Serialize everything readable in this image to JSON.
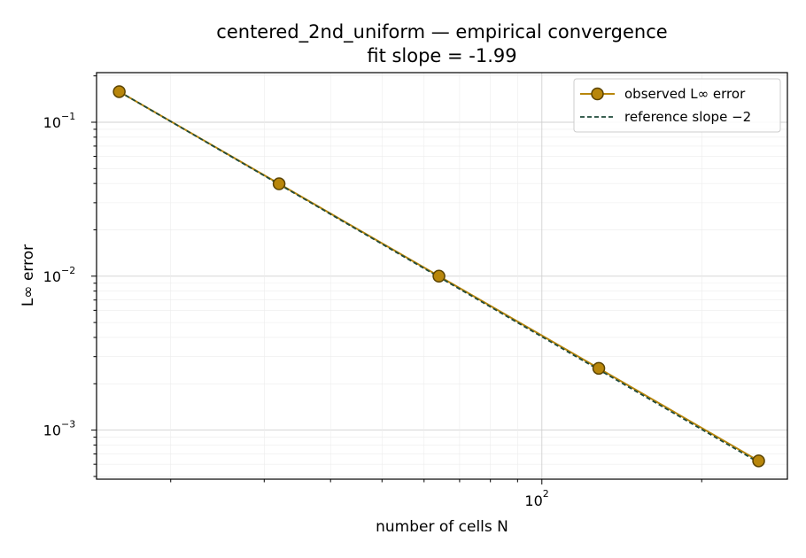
{
  "chart_data": {
    "type": "line",
    "title": "centered_2nd_uniform — empirical convergence",
    "subtitle": "fit slope = -1.99",
    "xlabel": "number of cells N",
    "ylabel": "L∞ error",
    "xscale": "log",
    "yscale": "log",
    "xlim": [
      14.5,
      290
    ],
    "ylim": [
      0.00048,
      0.21
    ],
    "x_ticks": [
      {
        "value": 100,
        "base": "10",
        "exp": "2"
      }
    ],
    "y_ticks": [
      {
        "value": 0.001,
        "base": "10",
        "exp": "−3"
      },
      {
        "value": 0.01,
        "base": "10",
        "exp": "−2"
      },
      {
        "value": 0.1,
        "base": "10",
        "exp": "−1"
      }
    ],
    "grid": true,
    "legend_position": "top-right",
    "series": [
      {
        "name": "observed L∞ error",
        "style": "line-marker",
        "color": "#b8860b",
        "marker_fill": "#b8860b",
        "marker_edge": "#5a4300",
        "x": [
          16,
          32,
          64,
          128,
          256
        ],
        "y": [
          0.158,
          0.0398,
          0.01,
          0.00252,
          0.000631
        ]
      },
      {
        "name": "reference slope −2",
        "style": "dashed",
        "color": "#1f4a3a",
        "x": [
          16,
          256
        ],
        "y": [
          0.158,
          0.000617
        ]
      }
    ]
  }
}
